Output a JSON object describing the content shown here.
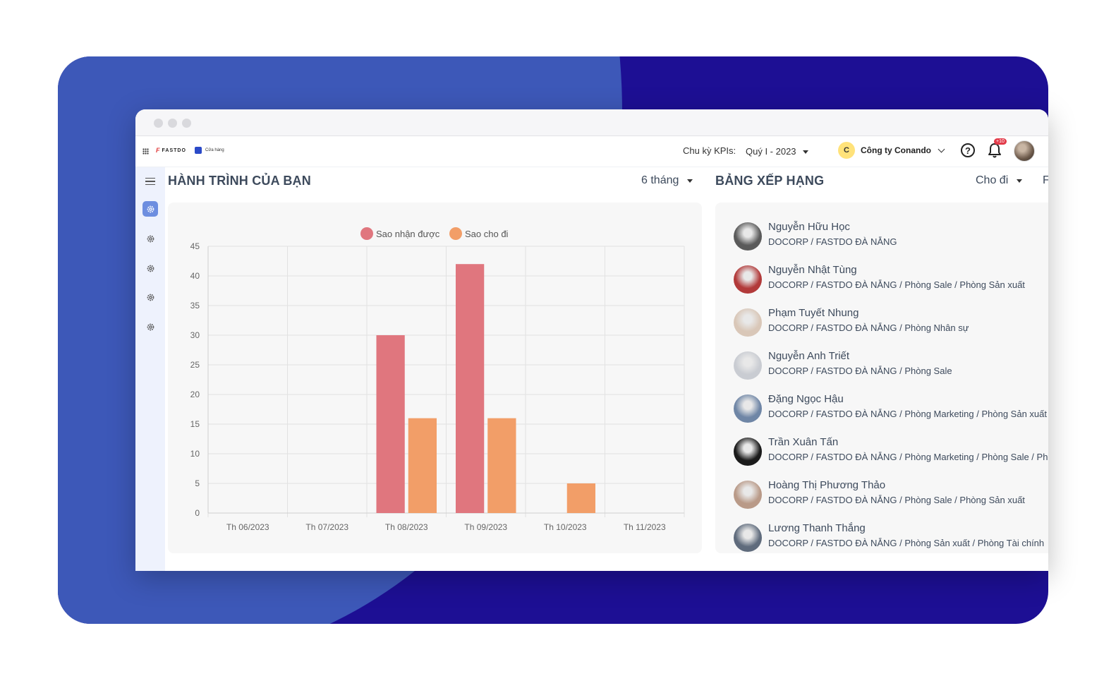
{
  "topbar": {
    "logo_text": "FASTDO",
    "store_label": "Cửa hàng",
    "kpi_label": "Chu kỳ KPIs:",
    "kpi_value": "Quý I - 2023",
    "company_initial": "C",
    "company_name": "Công ty Conando",
    "notification_badge": "+10"
  },
  "journey": {
    "title": "HÀNH TRÌNH CỦA BẠN",
    "period": "6 tháng"
  },
  "ranking": {
    "title": "BẢNG XẾP HẠNG",
    "filter": "Cho đi",
    "filter2_partial": "F",
    "people": [
      {
        "name": "Nguyễn Hữu Học",
        "path": "DOCORP / FASTDO ĐÀ NẴNG",
        "avatar_color": "#5a5a5a"
      },
      {
        "name": "Nguyễn Nhật Tùng",
        "path": "DOCORP / FASTDO ĐÀ NẴNG / Phòng Sale / Phòng Sản xuất",
        "avatar_color": "#b23a3a"
      },
      {
        "name": "Phạm Tuyết Nhung",
        "path": "DOCORP / FASTDO ĐÀ NẴNG / Phòng Nhân sự",
        "avatar_color": "#d9c7b8"
      },
      {
        "name": "Nguyễn Anh Triết",
        "path": "DOCORP / FASTDO ĐÀ NẴNG / Phòng Sale",
        "avatar_color": "#c9ccd2"
      },
      {
        "name": "Đặng Ngọc Hậu",
        "path": "DOCORP / FASTDO ĐÀ NẴNG / Phòng Marketing / Phòng Sản xuất",
        "avatar_color": "#6f86a6"
      },
      {
        "name": "Trần Xuân Tấn",
        "path": "DOCORP / FASTDO ĐÀ NẴNG / Phòng Marketing / Phòng Sale / Phòng Sản xuất",
        "avatar_color": "#1b1b1b"
      },
      {
        "name": "Hoàng Thị Phương Thảo",
        "path": "DOCORP / FASTDO ĐÀ NẴNG / Phòng Sale / Phòng Sản xuất",
        "avatar_color": "#b99a88"
      },
      {
        "name": "Lương Thanh Thắng",
        "path": "DOCORP / FASTDO ĐÀ NẴNG / Phòng Sản xuất / Phòng Tài chính",
        "avatar_color": "#5f6b7c"
      }
    ]
  },
  "chart_data": {
    "type": "bar",
    "categories": [
      "Th 06/2023",
      "Th 07/2023",
      "Th 08/2023",
      "Th 09/2023",
      "Th 10/2023",
      "Th 11/2023"
    ],
    "series": [
      {
        "name": "Sao nhận được",
        "color": "#e0767e",
        "values": [
          0,
          0,
          30,
          42,
          0,
          0
        ]
      },
      {
        "name": "Sao cho đi",
        "color": "#f29e68",
        "values": [
          0,
          0,
          16,
          16,
          5,
          0
        ]
      }
    ],
    "yticks": [
      "0",
      "5",
      "10",
      "15",
      "20",
      "25",
      "30",
      "35",
      "40",
      "45"
    ],
    "ylim": [
      0,
      45
    ],
    "grid": true,
    "legend": "top"
  }
}
